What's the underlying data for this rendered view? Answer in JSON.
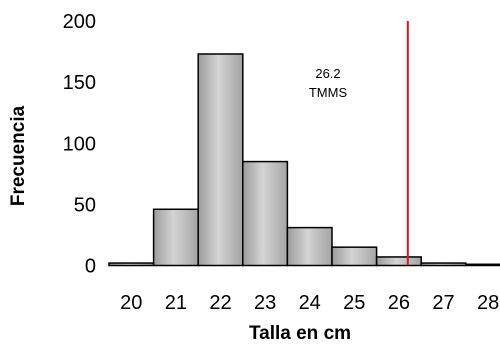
{
  "chart_data": {
    "type": "bar",
    "title": "",
    "xlabel": "Talla en cm",
    "ylabel": "Frecuencia",
    "ylim": [
      0,
      200
    ],
    "yticks": [
      0,
      50,
      100,
      150,
      200
    ],
    "categories": [
      "20",
      "21",
      "22",
      "23",
      "24",
      "25",
      "26",
      "27",
      "28"
    ],
    "bins": [
      {
        "start": 19.5,
        "end": 20.5,
        "value": 2
      },
      {
        "start": 20.5,
        "end": 21.5,
        "value": 46
      },
      {
        "start": 21.5,
        "end": 22.5,
        "value": 173
      },
      {
        "start": 22.5,
        "end": 23.5,
        "value": 85
      },
      {
        "start": 23.5,
        "end": 24.5,
        "value": 31
      },
      {
        "start": 24.5,
        "end": 25.5,
        "value": 15
      },
      {
        "start": 25.5,
        "end": 26.5,
        "value": 7
      },
      {
        "start": 26.5,
        "end": 27.5,
        "value": 2
      },
      {
        "start": 27.5,
        "end": 28.5,
        "value": 1
      }
    ],
    "reference_line": {
      "x": 26.2,
      "color": "#e0141e",
      "label_value": "26.2",
      "label_name": "TMMS"
    },
    "bar_fill": "#b8b8b8",
    "bar_stroke": "#000000",
    "grid": false,
    "legend": "none"
  }
}
